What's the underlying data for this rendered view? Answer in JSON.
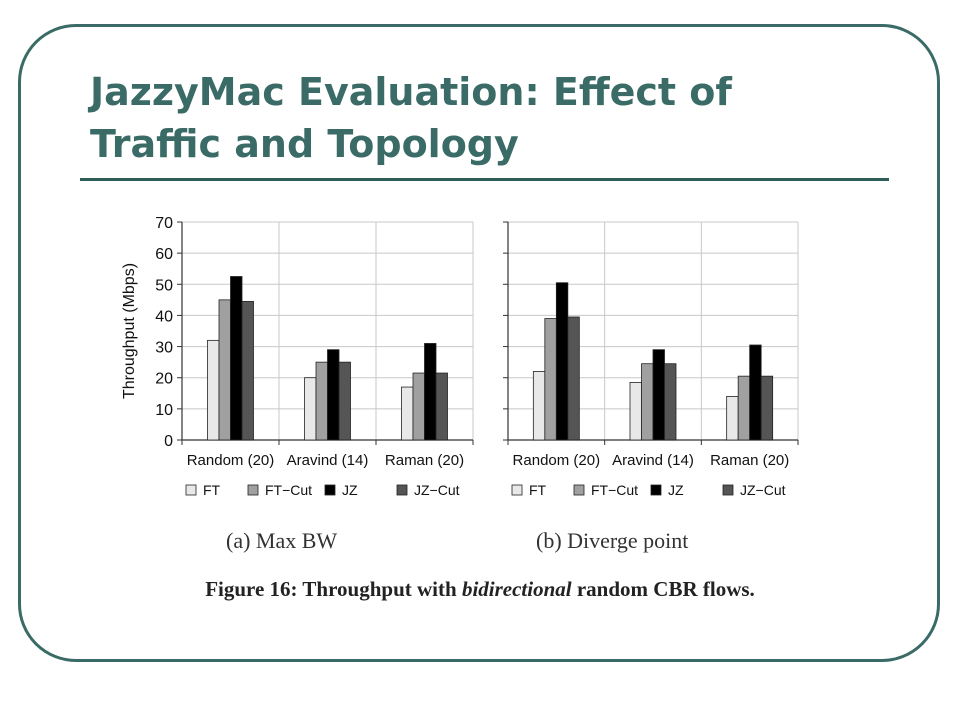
{
  "slide": {
    "title_line1": "JazzyMac Evaluation: Effect of",
    "title_line2": "Traffic and Topology"
  },
  "colors": {
    "accent": "#3a6b66",
    "series": [
      "#e8e8e8",
      "#a0a0a0",
      "#000000",
      "#555555"
    ]
  },
  "caption": {
    "prefix": "Figure 16:  Throughput with ",
    "emphasis": "bidirectional",
    "suffix": " random CBR flows."
  },
  "chart_data": [
    {
      "type": "bar",
      "subtitle": "(a) Max BW",
      "categories": [
        "Random (20)",
        "Aravind (14)",
        "Raman (20)"
      ],
      "series": [
        {
          "name": "FT",
          "values": [
            32,
            20,
            17
          ]
        },
        {
          "name": "FT-Cut",
          "values": [
            45,
            25,
            21.5
          ]
        },
        {
          "name": "JZ",
          "values": [
            52.5,
            29,
            31
          ]
        },
        {
          "name": "JZ-Cut",
          "values": [
            44.5,
            25,
            21.5
          ]
        }
      ],
      "ylabel": "Throughput (Mbps)",
      "yticks": [
        "0",
        "10",
        "20",
        "30",
        "40",
        "50",
        "60",
        "70"
      ],
      "ylim": [
        0,
        70
      ],
      "grid": true,
      "legend": "bottom"
    },
    {
      "type": "bar",
      "subtitle": "(b) Diverge point",
      "categories": [
        "Random (20)",
        "Aravind (14)",
        "Raman (20)"
      ],
      "series": [
        {
          "name": "FT",
          "values": [
            22,
            18.5,
            14
          ]
        },
        {
          "name": "FT-Cut",
          "values": [
            39,
            24.5,
            20.5
          ]
        },
        {
          "name": "JZ",
          "values": [
            50.5,
            29,
            30.5
          ]
        },
        {
          "name": "JZ-Cut",
          "values": [
            39.5,
            24.5,
            20.5
          ]
        }
      ],
      "ylim": [
        0,
        70
      ],
      "grid": true,
      "legend": "bottom"
    }
  ]
}
